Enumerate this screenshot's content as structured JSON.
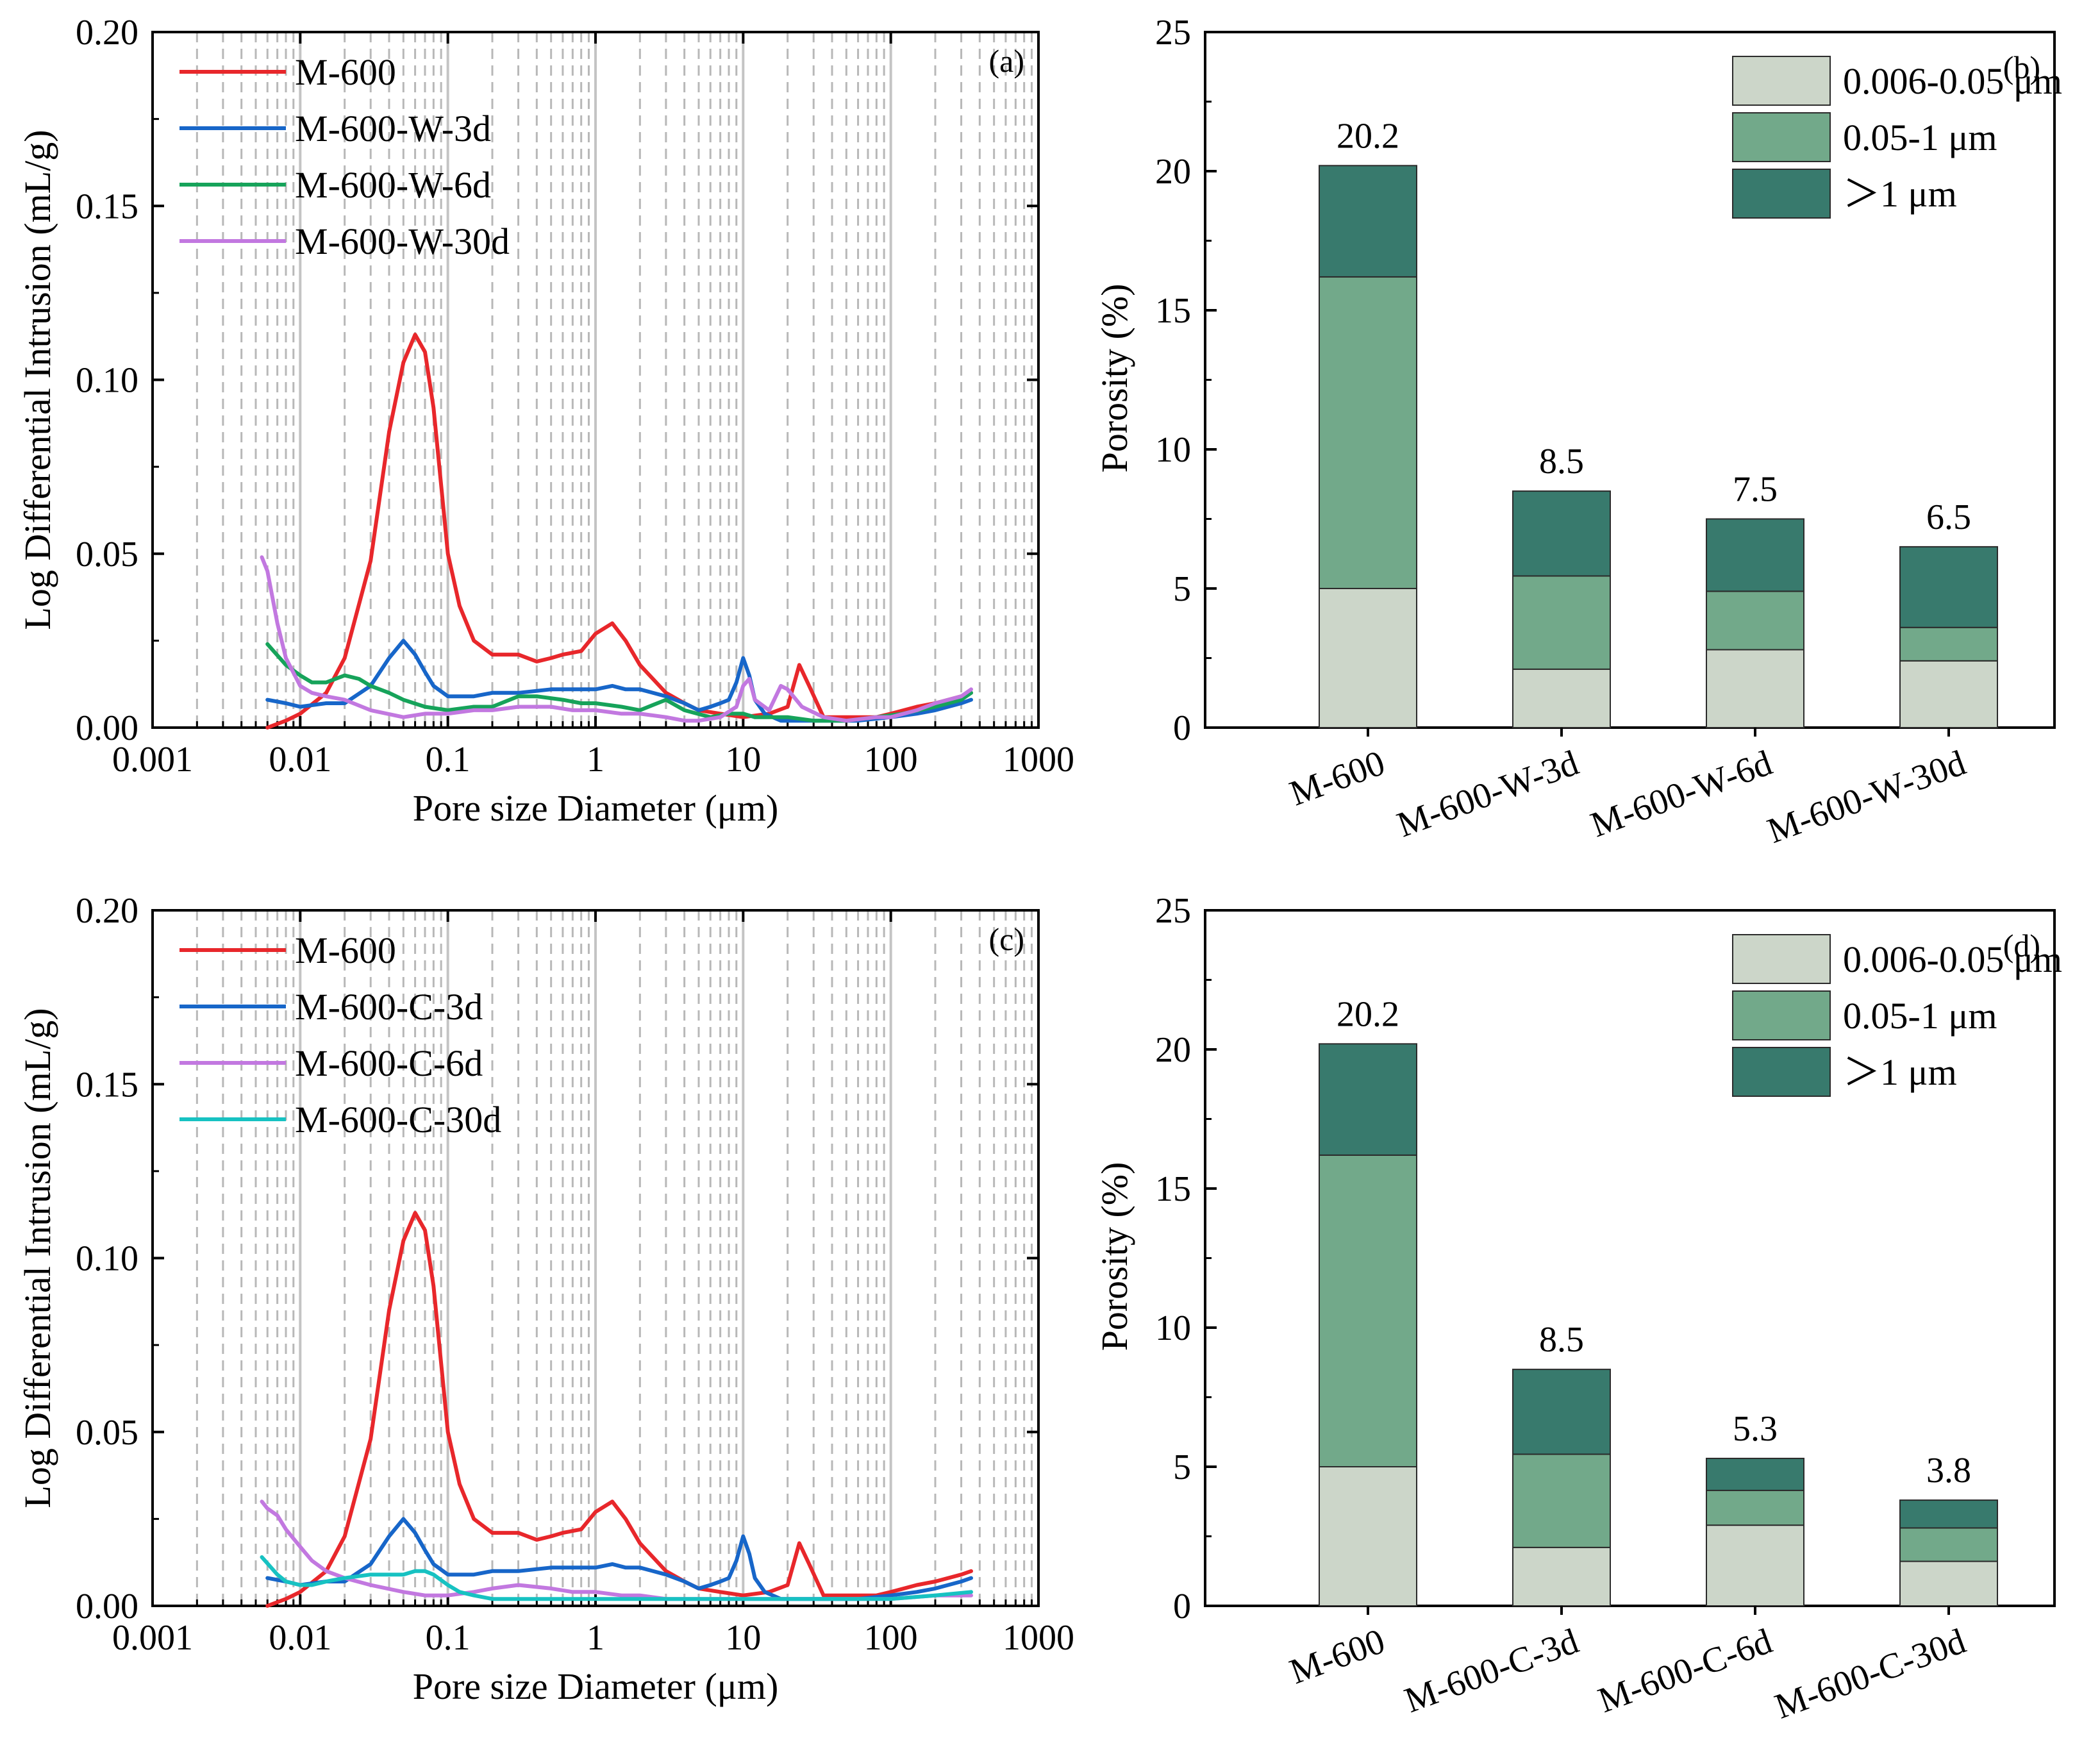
{
  "colors": {
    "M-600": "#e8272b",
    "W-3d": "#1766c9",
    "W-6d": "#16a35a",
    "W-30d": "#c278e0",
    "C-3d": "#1766c9",
    "C-6d": "#c278e0",
    "C-30d": "#17c2c2",
    "band_small": "#ccd6c9",
    "band_mid": "#72a98a",
    "band_large": "#387a6d"
  },
  "chart_data": [
    {
      "id": "a",
      "type": "line",
      "panel_label": "(a)",
      "xlabel": "Pore size Diameter (μm)",
      "ylabel": "Log Differential Intrusion (mL/g)",
      "xscale": "log",
      "xlim": [
        0.001,
        1000
      ],
      "ylim": [
        0,
        0.2
      ],
      "xticks": [
        "0.001",
        "0.01",
        "0.1",
        "1",
        "10",
        "100",
        "1000"
      ],
      "yticks": [
        "0.00",
        "0.05",
        "0.10",
        "0.15",
        "0.20"
      ],
      "legend_position": "top-left",
      "series": [
        {
          "name": "M-600",
          "color_key": "M-600",
          "x": [
            0.006,
            0.008,
            0.01,
            0.015,
            0.02,
            0.03,
            0.04,
            0.05,
            0.06,
            0.07,
            0.08,
            0.1,
            0.12,
            0.15,
            0.2,
            0.3,
            0.4,
            0.5,
            0.6,
            0.8,
            1.0,
            1.3,
            1.6,
            2,
            3,
            4,
            5,
            7,
            10,
            15,
            20,
            24,
            28,
            35,
            50,
            80,
            100,
            150,
            200,
            300,
            350
          ],
          "y": [
            0.0,
            0.002,
            0.004,
            0.01,
            0.02,
            0.048,
            0.085,
            0.105,
            0.113,
            0.108,
            0.092,
            0.05,
            0.035,
            0.025,
            0.021,
            0.021,
            0.019,
            0.02,
            0.021,
            0.022,
            0.027,
            0.03,
            0.025,
            0.018,
            0.01,
            0.007,
            0.005,
            0.004,
            0.003,
            0.004,
            0.006,
            0.018,
            0.012,
            0.003,
            0.003,
            0.003,
            0.004,
            0.006,
            0.007,
            0.009,
            0.01
          ]
        },
        {
          "name": "M-600-W-3d",
          "color_key": "W-3d",
          "x": [
            0.006,
            0.008,
            0.01,
            0.015,
            0.02,
            0.03,
            0.04,
            0.05,
            0.06,
            0.07,
            0.08,
            0.1,
            0.15,
            0.2,
            0.3,
            0.5,
            0.7,
            1.0,
            1.3,
            1.6,
            2,
            3,
            4,
            5,
            6,
            7,
            8,
            9,
            10,
            11,
            12,
            14,
            18,
            25,
            40,
            60,
            100,
            150,
            200,
            300,
            350
          ],
          "y": [
            0.008,
            0.007,
            0.006,
            0.007,
            0.007,
            0.012,
            0.02,
            0.025,
            0.021,
            0.016,
            0.012,
            0.009,
            0.009,
            0.01,
            0.01,
            0.011,
            0.011,
            0.011,
            0.012,
            0.011,
            0.011,
            0.009,
            0.007,
            0.005,
            0.006,
            0.007,
            0.008,
            0.013,
            0.02,
            0.015,
            0.008,
            0.004,
            0.002,
            0.002,
            0.002,
            0.002,
            0.003,
            0.004,
            0.005,
            0.007,
            0.008
          ]
        },
        {
          "name": "M-600-W-6d",
          "color_key": "W-6d",
          "x": [
            0.006,
            0.008,
            0.01,
            0.012,
            0.015,
            0.02,
            0.025,
            0.03,
            0.04,
            0.05,
            0.07,
            0.1,
            0.15,
            0.2,
            0.3,
            0.4,
            0.6,
            0.8,
            1.0,
            1.5,
            2,
            3,
            4,
            6,
            8,
            10,
            12,
            15,
            20,
            30,
            50,
            80,
            120,
            200,
            300,
            350
          ],
          "y": [
            0.024,
            0.018,
            0.015,
            0.013,
            0.013,
            0.015,
            0.014,
            0.012,
            0.01,
            0.008,
            0.006,
            0.005,
            0.006,
            0.006,
            0.009,
            0.009,
            0.008,
            0.007,
            0.007,
            0.006,
            0.005,
            0.008,
            0.005,
            0.003,
            0.004,
            0.004,
            0.003,
            0.003,
            0.003,
            0.002,
            0.002,
            0.003,
            0.004,
            0.006,
            0.008,
            0.01
          ]
        },
        {
          "name": "M-600-W-30d",
          "color_key": "W-30d",
          "x": [
            0.0055,
            0.006,
            0.007,
            0.008,
            0.01,
            0.012,
            0.015,
            0.02,
            0.03,
            0.05,
            0.07,
            0.1,
            0.15,
            0.2,
            0.3,
            0.5,
            0.7,
            1.0,
            1.5,
            2,
            3,
            4,
            5,
            7,
            9,
            10,
            11,
            12,
            15,
            18,
            20,
            25,
            35,
            50,
            80,
            100,
            150,
            200,
            300,
            350
          ],
          "y": [
            0.049,
            0.045,
            0.03,
            0.02,
            0.012,
            0.01,
            0.009,
            0.008,
            0.005,
            0.003,
            0.004,
            0.004,
            0.005,
            0.005,
            0.006,
            0.006,
            0.005,
            0.005,
            0.004,
            0.004,
            0.003,
            0.002,
            0.002,
            0.003,
            0.006,
            0.012,
            0.014,
            0.008,
            0.005,
            0.012,
            0.011,
            0.006,
            0.003,
            0.002,
            0.003,
            0.003,
            0.005,
            0.007,
            0.009,
            0.011
          ]
        }
      ]
    },
    {
      "id": "b",
      "type": "bar",
      "stacked": true,
      "panel_label": "(b)",
      "ylabel": "Porosity (%)",
      "ylim": [
        0,
        25
      ],
      "yticks": [
        "0",
        "5",
        "10",
        "15",
        "20",
        "25"
      ],
      "categories": [
        "M-600",
        "M-600-W-3d",
        "M-600-W-6d",
        "M-600-W-30d"
      ],
      "totals_text": [
        "20.2",
        "8.5",
        "7.5",
        "6.5"
      ],
      "legend_position": "top-right",
      "series": [
        {
          "name": "0.006-0.05 μm",
          "color_key": "band_small",
          "values": [
            5.0,
            2.1,
            2.8,
            2.4
          ]
        },
        {
          "name": "0.05-1 μm",
          "color_key": "band_mid",
          "values": [
            11.2,
            3.35,
            2.1,
            1.2
          ]
        },
        {
          "name": "＞1 μm",
          "color_key": "band_large",
          "values": [
            4.0,
            3.05,
            2.6,
            2.9
          ]
        }
      ]
    },
    {
      "id": "c",
      "type": "line",
      "panel_label": "(c)",
      "xlabel": "Pore size Diameter (μm)",
      "ylabel": "Log Differential Intrusion (mL/g)",
      "xscale": "log",
      "xlim": [
        0.001,
        1000
      ],
      "ylim": [
        0,
        0.2
      ],
      "xticks": [
        "0.001",
        "0.01",
        "0.1",
        "1",
        "10",
        "100",
        "1000"
      ],
      "yticks": [
        "0.00",
        "0.05",
        "0.10",
        "0.15",
        "0.20"
      ],
      "legend_position": "top-left",
      "series": [
        {
          "name": "M-600",
          "color_key": "M-600",
          "x": [
            0.006,
            0.008,
            0.01,
            0.015,
            0.02,
            0.03,
            0.04,
            0.05,
            0.06,
            0.07,
            0.08,
            0.1,
            0.12,
            0.15,
            0.2,
            0.3,
            0.4,
            0.5,
            0.6,
            0.8,
            1.0,
            1.3,
            1.6,
            2,
            3,
            4,
            5,
            7,
            10,
            15,
            20,
            24,
            28,
            35,
            50,
            80,
            100,
            150,
            200,
            300,
            350
          ],
          "y": [
            0.0,
            0.002,
            0.004,
            0.01,
            0.02,
            0.048,
            0.085,
            0.105,
            0.113,
            0.108,
            0.092,
            0.05,
            0.035,
            0.025,
            0.021,
            0.021,
            0.019,
            0.02,
            0.021,
            0.022,
            0.027,
            0.03,
            0.025,
            0.018,
            0.01,
            0.007,
            0.005,
            0.004,
            0.003,
            0.004,
            0.006,
            0.018,
            0.012,
            0.003,
            0.003,
            0.003,
            0.004,
            0.006,
            0.007,
            0.009,
            0.01
          ]
        },
        {
          "name": "M-600-C-3d",
          "color_key": "C-3d",
          "x": [
            0.006,
            0.008,
            0.01,
            0.015,
            0.02,
            0.03,
            0.04,
            0.05,
            0.06,
            0.07,
            0.08,
            0.1,
            0.15,
            0.2,
            0.3,
            0.5,
            0.7,
            1.0,
            1.3,
            1.6,
            2,
            3,
            4,
            5,
            6,
            7,
            8,
            9,
            10,
            11,
            12,
            14,
            18,
            25,
            40,
            60,
            100,
            150,
            200,
            300,
            350
          ],
          "y": [
            0.008,
            0.007,
            0.006,
            0.007,
            0.007,
            0.012,
            0.02,
            0.025,
            0.021,
            0.016,
            0.012,
            0.009,
            0.009,
            0.01,
            0.01,
            0.011,
            0.011,
            0.011,
            0.012,
            0.011,
            0.011,
            0.009,
            0.007,
            0.005,
            0.006,
            0.007,
            0.008,
            0.013,
            0.02,
            0.015,
            0.008,
            0.004,
            0.002,
            0.002,
            0.002,
            0.002,
            0.003,
            0.004,
            0.005,
            0.007,
            0.008
          ]
        },
        {
          "name": "M-600-C-6d",
          "color_key": "C-6d",
          "x": [
            0.0055,
            0.006,
            0.007,
            0.008,
            0.01,
            0.012,
            0.015,
            0.02,
            0.03,
            0.05,
            0.07,
            0.1,
            0.15,
            0.2,
            0.3,
            0.5,
            0.7,
            1.0,
            1.5,
            2,
            3,
            4,
            6,
            8,
            10,
            15,
            20,
            30,
            50,
            100,
            200,
            350
          ],
          "y": [
            0.03,
            0.028,
            0.026,
            0.022,
            0.017,
            0.013,
            0.01,
            0.008,
            0.006,
            0.004,
            0.003,
            0.003,
            0.004,
            0.005,
            0.006,
            0.005,
            0.004,
            0.004,
            0.003,
            0.003,
            0.002,
            0.002,
            0.002,
            0.002,
            0.002,
            0.002,
            0.002,
            0.002,
            0.002,
            0.002,
            0.003,
            0.003
          ]
        },
        {
          "name": "M-600-C-30d",
          "color_key": "C-30d",
          "x": [
            0.0055,
            0.007,
            0.008,
            0.01,
            0.012,
            0.015,
            0.02,
            0.03,
            0.04,
            0.05,
            0.06,
            0.07,
            0.08,
            0.1,
            0.12,
            0.15,
            0.2,
            0.3,
            0.5,
            1.0,
            2,
            4,
            6,
            10,
            20,
            50,
            100,
            200,
            350
          ],
          "y": [
            0.014,
            0.009,
            0.007,
            0.006,
            0.006,
            0.007,
            0.008,
            0.009,
            0.009,
            0.009,
            0.01,
            0.01,
            0.009,
            0.006,
            0.004,
            0.003,
            0.002,
            0.002,
            0.002,
            0.002,
            0.002,
            0.002,
            0.002,
            0.002,
            0.002,
            0.002,
            0.002,
            0.003,
            0.004
          ]
        }
      ]
    },
    {
      "id": "d",
      "type": "bar",
      "stacked": true,
      "panel_label": "(d)",
      "ylabel": "Porosity (%)",
      "ylim": [
        0,
        25
      ],
      "yticks": [
        "0",
        "5",
        "10",
        "15",
        "20",
        "25"
      ],
      "categories": [
        "M-600",
        "M-600-C-3d",
        "M-600-C-6d",
        "M-600-C-30d"
      ],
      "totals_text": [
        "20.2",
        "8.5",
        "5.3",
        "3.8"
      ],
      "legend_position": "top-right",
      "series": [
        {
          "name": "0.006-0.05 μm",
          "color_key": "band_small",
          "values": [
            5.0,
            2.1,
            2.9,
            1.6
          ]
        },
        {
          "name": "0.05-1 μm",
          "color_key": "band_mid",
          "values": [
            11.2,
            3.35,
            1.25,
            1.2
          ]
        },
        {
          "name": "＞1 μm",
          "color_key": "band_large",
          "values": [
            4.0,
            3.05,
            1.15,
            1.0
          ]
        }
      ]
    }
  ]
}
